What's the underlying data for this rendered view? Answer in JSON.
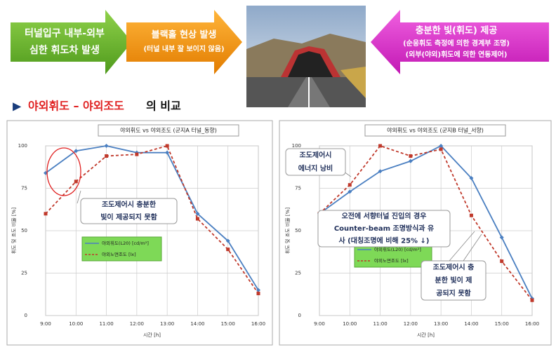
{
  "banner": {
    "steps": [
      {
        "lines": [
          "터널입구 내부-외부",
          "심한 휘도차 발생"
        ]
      },
      {
        "lines": [
          "블랙홀 현상 발생",
          "(터널 내부 잘 보이지 않음)"
        ]
      },
      {
        "lines": [
          "충분한 빛(휘도) 제공",
          "(순응휘도 측정에 의한 경계부 조명)",
          "(외부(야외)휘도에 의한 연동제어)"
        ]
      }
    ]
  },
  "heading": {
    "marker": "▶",
    "highlight": "야외휘도 – 야외조도",
    "rest": "의 비교"
  },
  "chart_data": [
    {
      "type": "line",
      "title": "야외휘도 vs 야외조도 (군지A 터널_동향)",
      "xlabel": "시간 [h]",
      "ylabel": "휘도 및 조도 비율 [%]",
      "categories": [
        "9:00",
        "10:00",
        "11:00",
        "12:00",
        "13:00",
        "14:00",
        "15:00",
        "16:00"
      ],
      "series": [
        {
          "name": "야외휘도(L20) [cd/m²]",
          "color": "#4a7fc1",
          "values": [
            84,
            97,
            100,
            96,
            96,
            60,
            44,
            15
          ]
        },
        {
          "name": "야외노면조도 [lx]",
          "color": "#c0392b",
          "values": [
            60,
            79,
            94,
            95,
            100,
            57,
            39,
            13
          ]
        }
      ],
      "ylim": [
        0,
        100
      ],
      "yticks": [
        0,
        25,
        50,
        75,
        100
      ],
      "grid": true,
      "annotations": [
        [
          "조도제어시 충분한",
          "빛이 제공되지 못함"
        ]
      ]
    },
    {
      "type": "line",
      "title": "야외휘도 vs 야외조도 (군지B 터널_서향)",
      "xlabel": "시간 [h]",
      "ylabel": "휘도 및 조도 비율 [%]",
      "categories": [
        "9:00",
        "10:00",
        "11:00",
        "12:00",
        "13:00",
        "14:00",
        "15:00",
        "16:00"
      ],
      "series": [
        {
          "name": "야외휘도(L20) [cd/m²]",
          "color": "#4a7fc1",
          "values": [
            60,
            73,
            85,
            91,
            100,
            81,
            46,
            10
          ]
        },
        {
          "name": "야외노면조도 [lx]",
          "color": "#c0392b",
          "values": [
            60,
            77,
            100,
            94,
            98,
            59,
            32,
            9
          ]
        }
      ],
      "ylim": [
        0,
        100
      ],
      "yticks": [
        0,
        25,
        50,
        75,
        100
      ],
      "grid": true,
      "annotations": [
        [
          "조도제어시",
          "에너지 낭비"
        ],
        [
          "오전에 서향터널 진입의 경우",
          "Counter-beam 조명방식과 유",
          "사 (대칭조명에 비해 25% ↓)"
        ],
        [
          "조도제어시 충",
          "분한 빛이 제",
          "공되지 못함"
        ]
      ]
    }
  ]
}
